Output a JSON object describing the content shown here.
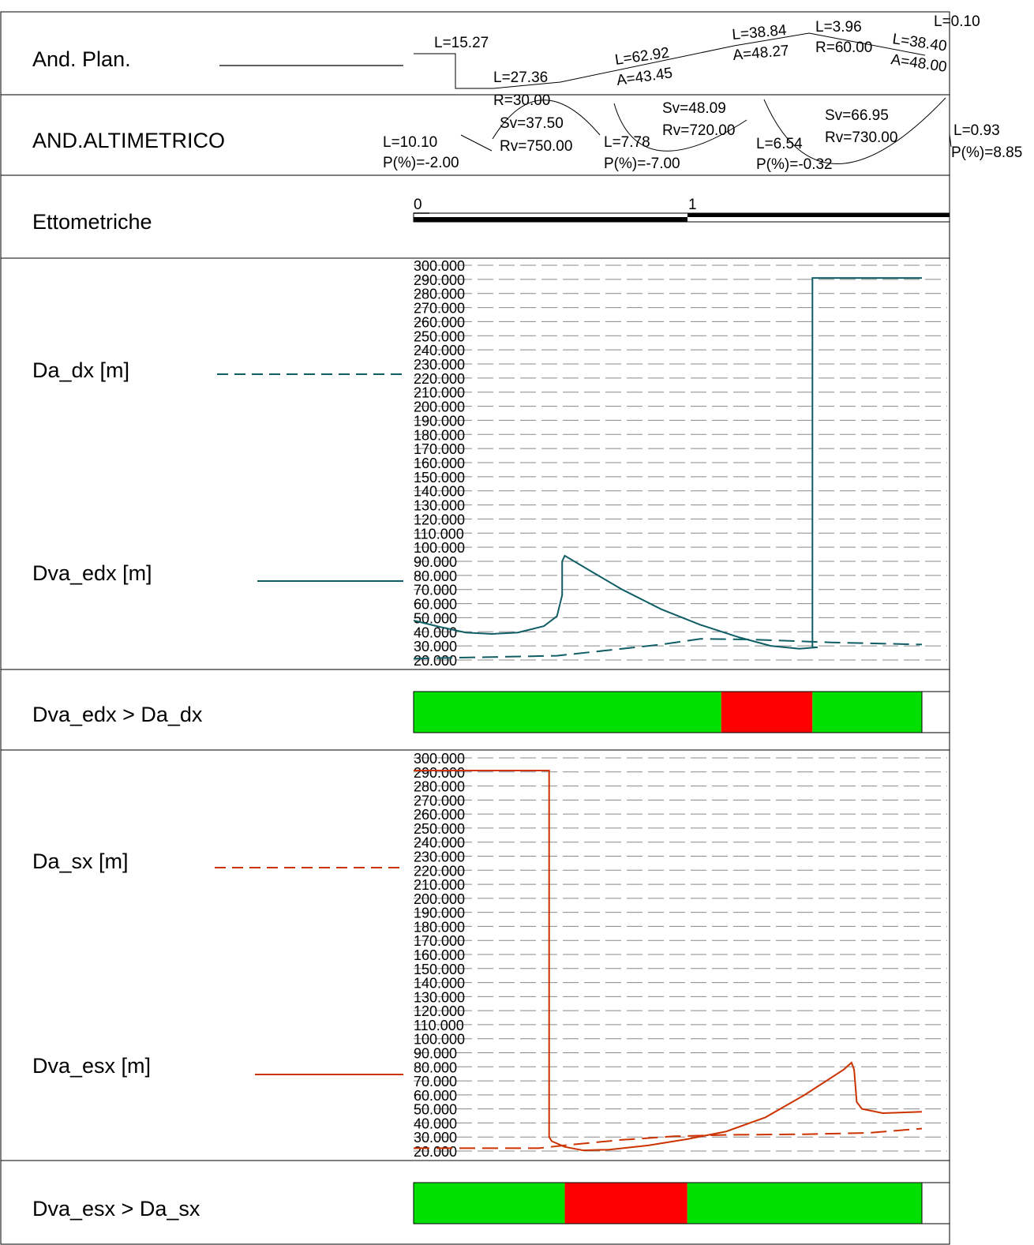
{
  "rows": {
    "plan": "And. Plan.",
    "alt": "AND.ALTIMETRICO",
    "etto": "Ettometriche",
    "da_dx": "Da_dx [m]",
    "dva_edx": "Dva_edx [m]",
    "cmp_dx": "Dva_edx > Da_dx",
    "da_sx": "Da_sx [m]",
    "dva_esx": "Dva_esx [m]",
    "cmp_sx": "Dva_esx > Da_sx"
  },
  "plan_labels": [
    "L=15.27",
    "L=27.36",
    "R=30.00",
    "L=62.92",
    "A=43.45",
    "L=38.84",
    "A=48.27",
    "L=3.96",
    "R=60.00",
    "L=38.40",
    "A=48.00",
    "L=0.10"
  ],
  "alt_labels": [
    "L=10.10",
    "P(%)=-2.00",
    "Sv=37.50",
    "Rv=750.00",
    "L=7.78",
    "P(%)=-7.00",
    "Sv=48.09",
    "Rv=720.00",
    "L=6.54",
    "P(%)=-0.32",
    "Sv=66.95",
    "Rv=730.00",
    "L=0.93",
    "P(%)=8.85"
  ],
  "etto_ticks": [
    "0",
    "1"
  ],
  "colors": {
    "dx": "#0f5e66",
    "sx": "#cc3300",
    "ok": "#00e000",
    "fail": "#ff0000",
    "grid": "#888888"
  },
  "chart_data": [
    {
      "type": "line",
      "yticks": [
        "300.000",
        "290.000",
        "280.000",
        "270.000",
        "260.000",
        "250.000",
        "240.000",
        "230.000",
        "220.000",
        "210.000",
        "200.000",
        "190.000",
        "180.000",
        "170.000",
        "160.000",
        "150.000",
        "140.000",
        "130.000",
        "120.000",
        "110.000",
        "100.000",
        "90.000",
        "80.000",
        "70.000",
        "60.000",
        "50.000",
        "40.000",
        "30.000",
        "20.000"
      ],
      "ylim": [
        20,
        300
      ],
      "xlim": [
        0,
        195
      ],
      "x_unit": "m",
      "series": [
        {
          "name": "Da_dx [m]",
          "style": "dashed",
          "points": [
            [
              0,
              21
            ],
            [
              55,
              23
            ],
            [
              75,
              27
            ],
            [
              95,
              31
            ],
            [
              110,
              35
            ],
            [
              130,
              34.5
            ],
            [
              160,
              32.5
            ],
            [
              195,
              31
            ]
          ]
        },
        {
          "name": "Dva_edx [m]",
          "style": "solid",
          "points": [
            [
              0,
              48
            ],
            [
              10,
              43.5
            ],
            [
              20,
              39.5
            ],
            [
              30,
              38.5
            ],
            [
              40,
              39.5
            ],
            [
              50,
              44
            ],
            [
              55,
              51
            ],
            [
              57,
              66
            ],
            [
              57,
              90
            ],
            [
              58,
              94
            ],
            [
              68,
              83
            ],
            [
              80,
              70
            ],
            [
              95,
              56
            ],
            [
              110,
              45
            ],
            [
              125,
              36
            ],
            [
              137,
              30
            ],
            [
              148,
              28
            ],
            [
              155,
              29
            ],
            [
              153,
              29
            ],
            [
              153,
              31
            ],
            [
              153,
              291
            ],
            [
              195,
              291
            ]
          ]
        }
      ]
    },
    {
      "type": "line",
      "yticks": [
        "300.000",
        "290.000",
        "280.000",
        "270.000",
        "260.000",
        "250.000",
        "240.000",
        "230.000",
        "220.000",
        "210.000",
        "200.000",
        "190.000",
        "180.000",
        "170.000",
        "160.000",
        "150.000",
        "140.000",
        "130.000",
        "120.000",
        "110.000",
        "100.000",
        "90.000",
        "80.000",
        "70.000",
        "60.000",
        "50.000",
        "40.000",
        "30.000",
        "20.000"
      ],
      "ylim": [
        20,
        300
      ],
      "xlim": [
        0,
        195
      ],
      "x_unit": "m",
      "series": [
        {
          "name": "Da_sx [m]",
          "style": "dashed",
          "points": [
            [
              0,
              22
            ],
            [
              48,
              22
            ],
            [
              60,
              24.5
            ],
            [
              80,
              28
            ],
            [
              100,
              30.5
            ],
            [
              120,
              31.5
            ],
            [
              150,
              32
            ],
            [
              175,
              33
            ],
            [
              195,
              36
            ]
          ]
        },
        {
          "name": "Dva_esx [m]",
          "style": "solid",
          "points": [
            [
              0,
              291
            ],
            [
              52,
              291
            ],
            [
              52,
              30
            ],
            [
              53,
              27
            ],
            [
              58,
              23
            ],
            [
              65,
              20.5
            ],
            [
              75,
              21
            ],
            [
              90,
              24
            ],
            [
              105,
              28.5
            ],
            [
              120,
              34
            ],
            [
              135,
              44
            ],
            [
              150,
              60
            ],
            [
              165,
              78
            ],
            [
              168,
              83
            ],
            [
              169,
              78
            ],
            [
              170,
              55
            ],
            [
              172,
              50
            ],
            [
              180,
              47
            ],
            [
              195,
              48
            ]
          ]
        }
      ]
    }
  ],
  "bars": {
    "dx": [
      {
        "status": "ok",
        "from": 0,
        "to": 118
      },
      {
        "status": "fail",
        "from": 118,
        "to": 153
      },
      {
        "status": "ok",
        "from": 153,
        "to": 195
      }
    ],
    "sx": [
      {
        "status": "ok",
        "from": 0,
        "to": 58
      },
      {
        "status": "fail",
        "from": 58,
        "to": 105
      },
      {
        "status": "ok",
        "from": 105,
        "to": 195
      }
    ]
  }
}
